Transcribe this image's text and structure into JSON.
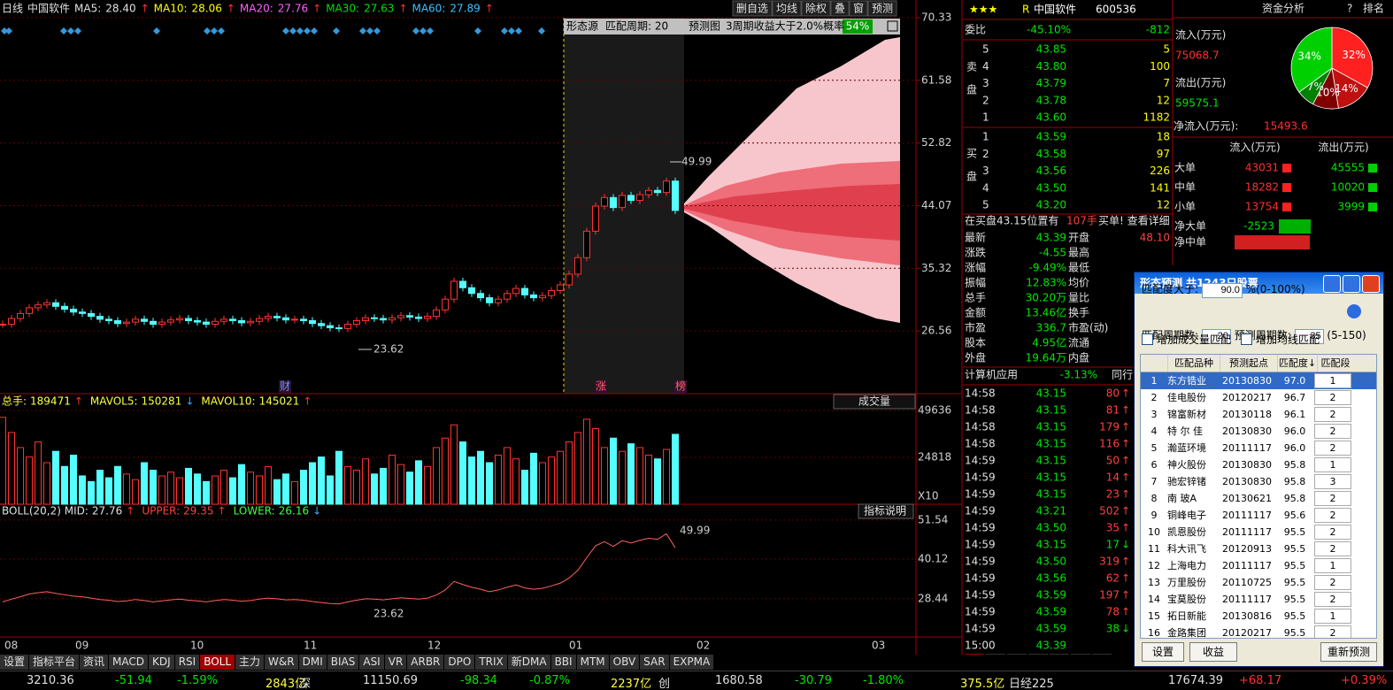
{
  "chart": {
    "header": {
      "period": "日线",
      "name": "中国软件",
      "ma": [
        {
          "label": "MA5:",
          "value": "28.40",
          "arrow": "↑",
          "color": "#e0e0e0"
        },
        {
          "label": "MA10:",
          "value": "28.06",
          "arrow": "↑",
          "color": "#ffff00"
        },
        {
          "label": "MA20:",
          "value": "27.76",
          "arrow": "↑",
          "color": "#ff60ff"
        },
        {
          "label": "MA30:",
          "value": "27.63",
          "arrow": "↑",
          "color": "#00e000"
        },
        {
          "label": "MA60:",
          "value": "27.89",
          "arrow": "↑",
          "color": "#40c0ff"
        }
      ]
    },
    "toolbar": [
      "删自选",
      "均线",
      "除权",
      "叠",
      "窗",
      "预测"
    ],
    "forecast": {
      "source": "形态源",
      "period": "匹配周期: 20",
      "title": "预测图",
      "prob_label": "3周期收益大于2.0%概率",
      "prob": "54%"
    },
    "annotations": {
      "high": "49.99",
      "low": "23.62",
      "markers": [
        "财",
        "涨",
        "榜"
      ]
    },
    "price": {
      "ylim": [
        17.8,
        70.33
      ],
      "yticks": [
        26.56,
        35.32,
        44.07,
        52.82,
        61.58,
        70.33
      ],
      "closes": [
        27.5,
        28.3,
        29.0,
        29.8,
        30.2,
        30.5,
        30.0,
        29.6,
        29.2,
        29.0,
        28.6,
        28.2,
        28.0,
        27.6,
        27.8,
        28.2,
        27.9,
        27.5,
        27.8,
        28.1,
        28.3,
        28.0,
        27.8,
        27.5,
        27.9,
        28.2,
        28.0,
        27.7,
        27.9,
        28.3,
        28.6,
        28.4,
        28.1,
        28.2,
        28.0,
        27.6,
        27.3,
        27.0,
        26.9,
        27.5,
        28.0,
        28.4,
        28.3,
        28.1,
        28.4,
        28.7,
        28.5,
        28.3,
        28.6,
        29.5,
        31.0,
        33.5,
        32.6,
        31.8,
        31.2,
        30.5,
        31.0,
        31.8,
        32.5,
        31.6,
        31.2,
        31.5,
        32.2,
        33.0,
        34.5,
        36.8,
        40.5,
        44.0,
        45.2,
        43.8,
        45.5,
        44.8,
        45.6,
        46.2,
        45.9,
        47.5,
        43.4
      ],
      "color_up": "#ff3232",
      "color_down": "#54ffff"
    },
    "volume": {
      "header": [
        {
          "label": "总手:",
          "value": "189471",
          "arrow": "↑"
        },
        {
          "label": "MAVOL5:",
          "value": "150281",
          "arrow": "↓"
        },
        {
          "label": "MAVOL10:",
          "value": "145021",
          "arrow": "↑"
        }
      ],
      "menu": "成交量",
      "unit": "X10",
      "ylim": [
        0,
        49636
      ],
      "yticks": [
        24818,
        49636
      ],
      "values": [
        46000,
        38000,
        30000,
        25000,
        33000,
        22000,
        28000,
        20000,
        26000,
        15000,
        12000,
        18000,
        14000,
        20000,
        16000,
        13000,
        22000,
        18000,
        15000,
        17000,
        14000,
        19000,
        16000,
        12000,
        15000,
        18000,
        14000,
        21000,
        17000,
        15000,
        20000,
        13000,
        16000,
        12000,
        18000,
        22000,
        25000,
        15000,
        28000,
        20000,
        18000,
        24000,
        16000,
        19000,
        26000,
        21000,
        17000,
        23000,
        20000,
        30000,
        35000,
        42000,
        33000,
        25000,
        28000,
        22000,
        26000,
        30000,
        24000,
        18000,
        27000,
        22000,
        25000,
        28000,
        33000,
        38000,
        45000,
        40000,
        30000,
        35000,
        28000,
        32000,
        30000,
        26000,
        24000,
        29000,
        37000
      ]
    },
    "boll": {
      "header": [
        {
          "label": "BOLL(20,2) MID:",
          "value": "27.76",
          "arrow": "↑"
        },
        {
          "label": "UPPER:",
          "value": "29.35",
          "arrow": "↑"
        },
        {
          "label": "LOWER:",
          "value": "26.16",
          "arrow": "↓"
        }
      ],
      "help": "指标说明",
      "ylim": [
        17.2,
        56.2
      ],
      "yticks": [
        28.44,
        40.12,
        51.54
      ]
    },
    "months": [
      "08",
      "09",
      "10",
      "11",
      "12",
      "01",
      "02",
      "03"
    ],
    "tabs": [
      "设置",
      "指标平台",
      "资讯",
      "MACD",
      "KDJ",
      "RSI",
      "BOLL",
      "主力",
      "W&R",
      "DMI",
      "BIAS",
      "ASI",
      "VR",
      "ARBR",
      "DPO",
      "TRIX",
      "新DMA",
      "BBI",
      "MTM",
      "OBV",
      "SAR",
      "EXPMA"
    ]
  },
  "quote": {
    "rating": "★★★",
    "flag": "R",
    "name": "中国软件",
    "code": "600536",
    "weibi": [
      "委比",
      "-45.10%",
      "-812"
    ],
    "sell_label": "卖盘",
    "buy_label": "买盘",
    "sell": [
      [
        "5",
        "43.85",
        "5"
      ],
      [
        "4",
        "43.80",
        "100"
      ],
      [
        "3",
        "43.79",
        "7"
      ],
      [
        "2",
        "43.78",
        "12"
      ],
      [
        "1",
        "43.60",
        "1182"
      ]
    ],
    "buy": [
      [
        "1",
        "43.59",
        "18"
      ],
      [
        "2",
        "43.58",
        "97"
      ],
      [
        "3",
        "43.56",
        "226"
      ],
      [
        "4",
        "43.50",
        "141"
      ],
      [
        "5",
        "43.20",
        "12"
      ]
    ],
    "notice": [
      "在买盘43.15位置有",
      "107手",
      "买单! 查看详细"
    ],
    "rows": [
      [
        "最新",
        "43.39",
        "开盘",
        "48.10"
      ],
      [
        "涨跌",
        "-4.55",
        "最高"
      ],
      [
        "涨幅",
        "-9.49%",
        "最低"
      ],
      [
        "振幅",
        "12.83%",
        "均价"
      ],
      [
        "总手",
        "30.20万",
        "量比"
      ],
      [
        "金额",
        "13.46亿",
        "换手"
      ],
      [
        "市盈",
        "336.7",
        "市盈(动)"
      ],
      [
        "股本",
        "4.95亿",
        "流通"
      ],
      [
        "外盘",
        "19.64万",
        "内盘"
      ]
    ],
    "industry": [
      "计算机应用",
      "-3.13%",
      "同行"
    ],
    "ticks": [
      [
        "14:58",
        "43.15",
        "80",
        "↑"
      ],
      [
        "14:58",
        "43.15",
        "81",
        "↑"
      ],
      [
        "14:58",
        "43.15",
        "179",
        "↑"
      ],
      [
        "14:58",
        "43.15",
        "116",
        "↑"
      ],
      [
        "14:59",
        "43.15",
        "50",
        "↑"
      ],
      [
        "14:59",
        "43.15",
        "14",
        "↑"
      ],
      [
        "14:59",
        "43.15",
        "23",
        "↑"
      ],
      [
        "14:59",
        "43.21",
        "502",
        "↑"
      ],
      [
        "14:59",
        "43.50",
        "35",
        "↑"
      ],
      [
        "14:59",
        "43.15",
        "17",
        "↓"
      ],
      [
        "14:59",
        "43.50",
        "319",
        "↑"
      ],
      [
        "14:59",
        "43.56",
        "62",
        "↑"
      ],
      [
        "14:59",
        "43.59",
        "197",
        "↑"
      ],
      [
        "14:59",
        "43.59",
        "78",
        "↑"
      ],
      [
        "14:59",
        "43.59",
        "38",
        "↓"
      ],
      [
        "15:00",
        "43.39"
      ]
    ],
    "tabs": [
      "细",
      "诊",
      "分",
      "筹",
      "焰",
      "指",
      "财"
    ]
  },
  "fund": {
    "title": "资金分析",
    "help": "?",
    "rank": "排名",
    "in_label": "流入(万元)",
    "in": "75068.7",
    "out_label": "流出(万元)",
    "out": "59575.1",
    "net_label": "净流入(万元):",
    "net": "15493.6",
    "pie": [
      {
        "label": "32%",
        "value": 32,
        "color": "#ff2020"
      },
      {
        "label": "14%",
        "value": 14,
        "color": "#c01010"
      },
      {
        "label": "10%",
        "value": 10,
        "color": "#800000"
      },
      {
        "label": "7%",
        "value": 7,
        "color": "#008000"
      },
      {
        "label": "34%",
        "value": 34,
        "color": "#00d000"
      }
    ],
    "cols": [
      "流入(万元)",
      "流出(万元)"
    ],
    "rows": [
      [
        "大单",
        "43031",
        "45555"
      ],
      [
        "中单",
        "18282",
        "10020"
      ],
      [
        "小单",
        "13754",
        "3999"
      ]
    ],
    "net_rows": [
      [
        "净大单",
        "-2523"
      ],
      [
        "净中单",
        "8262"
      ]
    ]
  },
  "dialog": {
    "title": "形态预测  共1243只股票",
    "match_label": "匹配度大于:",
    "match": "90.0",
    "match_range": "%(0-100%)",
    "period_label": "匹配周期数:",
    "period": "20",
    "pred_label": "预测周期数:",
    "pred": "35",
    "pred_range": "(5-150)",
    "checks": [
      "增加成交量匹配",
      "增加均线匹配"
    ],
    "cols": [
      "匹配品种",
      "预测起点",
      "匹配度↓",
      "匹配段"
    ],
    "rows": [
      [
        "1",
        "东方锆业",
        "20130830",
        "97.0",
        "1"
      ],
      [
        "2",
        "佳电股份",
        "20120217",
        "96.7",
        "2"
      ],
      [
        "3",
        "锦富新材",
        "20130118",
        "96.1",
        "2"
      ],
      [
        "4",
        "特 尔 佳",
        "20130830",
        "96.0",
        "2"
      ],
      [
        "5",
        "瀚蓝环境",
        "20111117",
        "96.0",
        "2"
      ],
      [
        "6",
        "神火股份",
        "20130830",
        "95.8",
        "1"
      ],
      [
        "7",
        "驰宏锌锗",
        "20130830",
        "95.8",
        "3"
      ],
      [
        "8",
        "南  玻A",
        "20130621",
        "95.8",
        "2"
      ],
      [
        "9",
        "铜峰电子",
        "20111117",
        "95.6",
        "2"
      ],
      [
        "10",
        "凯恩股份",
        "20111117",
        "95.5",
        "2"
      ],
      [
        "11",
        "科大讯飞",
        "20120913",
        "95.5",
        "2"
      ],
      [
        "12",
        "上海电力",
        "20111117",
        "95.5",
        "1"
      ],
      [
        "13",
        "万里股份",
        "20110725",
        "95.5",
        "2"
      ],
      [
        "14",
        "宝莫股份",
        "20111117",
        "95.5",
        "2"
      ],
      [
        "15",
        "拓日新能",
        "20130816",
        "95.5",
        "1"
      ],
      [
        "16",
        "金路集团",
        "20120217",
        "95.5",
        "2"
      ]
    ],
    "buttons": [
      "设置",
      "收益",
      "重新预测"
    ]
  },
  "status": [
    "3210.36",
    "-51.94",
    "-1.59%",
    "2843亿",
    "深",
    "11150.69",
    "-98.34",
    "-0.87%",
    "2237亿",
    "创",
    "1680.58",
    "-30.79",
    "-1.80%",
    "375.5亿",
    "日经225",
    "17674.39",
    "+68.17",
    "+0.39%"
  ]
}
